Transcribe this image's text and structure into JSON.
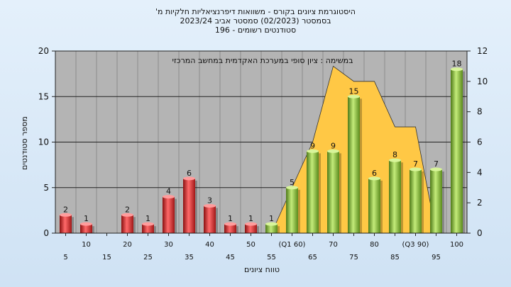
{
  "header": {
    "line1": "היסטוגרמת ציונים בקורס - משוואות דיפרנציאליות חלקיות מ'",
    "line2": "בסמסטר  (02/2023)  סמסטר אביב 2023/24",
    "line3": "סטודנטים רשומים - 196"
  },
  "colors": {
    "plot_bg": "#b4b4b4",
    "red_bar": "#e03030",
    "green_bar": "#8cc63f",
    "area": "#ffc845"
  },
  "chart_data": {
    "type": "bar",
    "title": "היסטוגרמת ציונים בקורס - משוואות דיפרנציאליות חלקיות מ'",
    "annotation": "במשימה : ציון סופי במערכת האקדמית במחשב המרכזי",
    "xlabel": "טווח ציונים",
    "ylabel": "מספר סטודנטים",
    "ylim": [
      0,
      20
    ],
    "y_ticks": [
      0,
      5,
      10,
      15,
      20
    ],
    "y2lim": [
      0,
      12
    ],
    "y2_ticks": [
      0,
      2,
      4,
      6,
      8,
      10,
      12
    ],
    "grid": true,
    "categories": [
      "5",
      "10",
      "15",
      "20",
      "25",
      "30",
      "35",
      "40",
      "45",
      "50",
      "55",
      "(Q1 60)",
      "65",
      "70",
      "75",
      "80",
      "85",
      "(Q3 90)",
      "95",
      "100"
    ],
    "values": [
      2,
      1,
      0,
      2,
      1,
      4,
      6,
      3,
      1,
      1,
      1,
      5,
      9,
      9,
      15,
      6,
      8,
      7,
      7,
      18
    ],
    "bar_colors": [
      "red",
      "red",
      "red",
      "red",
      "red",
      "red",
      "red",
      "red",
      "red",
      "red",
      "green",
      "green",
      "green",
      "green",
      "green",
      "green",
      "green",
      "green",
      "green",
      "green"
    ],
    "area_series": {
      "axis": "right",
      "points": [
        {
          "x": "55",
          "y": 0
        },
        {
          "x": "(Q1 60)",
          "y": 3
        },
        {
          "x": "65",
          "y": 6
        },
        {
          "x": "70",
          "y": 11
        },
        {
          "x": "75",
          "y": 10
        },
        {
          "x": "80",
          "y": 10
        },
        {
          "x": "85",
          "y": 7
        },
        {
          "x": "(Q3 90)",
          "y": 7
        },
        {
          "x": "95",
          "y": 0
        }
      ]
    }
  }
}
